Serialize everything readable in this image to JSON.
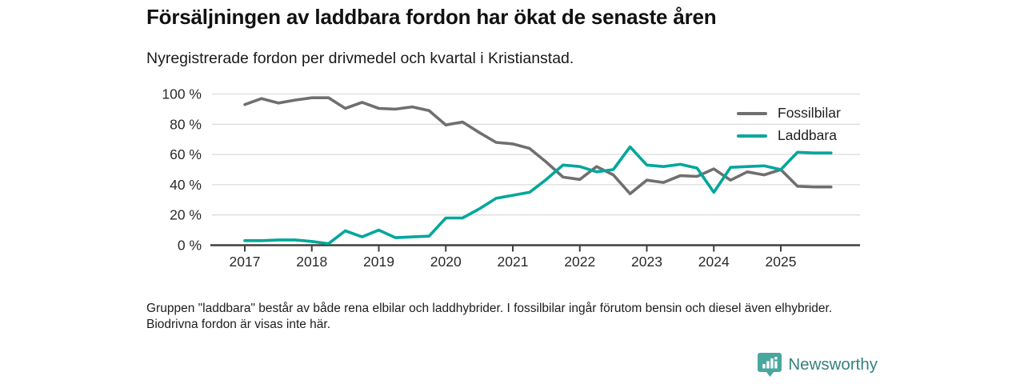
{
  "header": {
    "title": "Försäljningen av laddbara fordon har ökat de senaste åren",
    "subtitle": "Nyregistrerade fordon per drivmedel och kvartal i Kristianstad."
  },
  "chart_data": {
    "type": "line",
    "title": "Försäljningen av laddbara fordon har ökat de senaste åren",
    "subtitle": "Nyregistrerade fordon per drivmedel och kvartal i Kristianstad.",
    "unit": "%",
    "ylim": [
      0,
      100
    ],
    "y_tick_labels": [
      "0 %",
      "20 %",
      "40 %",
      "60 %",
      "80 %",
      "100 %"
    ],
    "y_tick_values": [
      0,
      20,
      40,
      60,
      80,
      100
    ],
    "x_tick_labels": [
      "2017",
      "2018",
      "2019",
      "2020",
      "2021",
      "2022",
      "2023",
      "2024",
      "2025"
    ],
    "points_per_year": 4,
    "x_start": "2017 kv1",
    "x_end": "2025 kv4",
    "grid": "horizontal",
    "legend_position": "top-right",
    "colors": {
      "grid": "#dcdcdc",
      "axis": "#3f3f3f",
      "tick_text": "#2a2a2a"
    },
    "series": [
      {
        "name": "Fossilbilar",
        "color": "#6f6f6f",
        "values": [
          93,
          97,
          94,
          96,
          97.5,
          97.5,
          90.5,
          94.5,
          90.5,
          90,
          91.5,
          89,
          79.5,
          81.5,
          74.5,
          68,
          67,
          64,
          55,
          45,
          43.5,
          52,
          46.5,
          34,
          43,
          41.5,
          46,
          45.5,
          50.5,
          43,
          48.5,
          46.5,
          50,
          39,
          38.5,
          38.5
        ]
      },
      {
        "name": "Laddbara",
        "color": "#00a79b",
        "values": [
          3,
          3,
          3.5,
          3.5,
          2.5,
          1,
          9.5,
          5.5,
          10,
          5,
          5.5,
          6,
          18,
          18,
          24,
          31,
          33,
          35,
          43.5,
          53,
          52,
          48.5,
          50,
          65,
          53,
          52,
          53.5,
          51,
          35,
          51.5,
          52,
          52.5,
          50,
          61.5,
          61,
          61
        ]
      }
    ]
  },
  "footer": {
    "note": "Gruppen \"laddbara\" består av både rena elbilar och laddhybrider. I fossilbilar ingår förutom bensin och diesel även elhybrider. Biodrivna fordon är visas inte här."
  },
  "branding": {
    "name": "Newsworthy",
    "icon_color": "#48a79e",
    "text_color": "#35827e"
  }
}
